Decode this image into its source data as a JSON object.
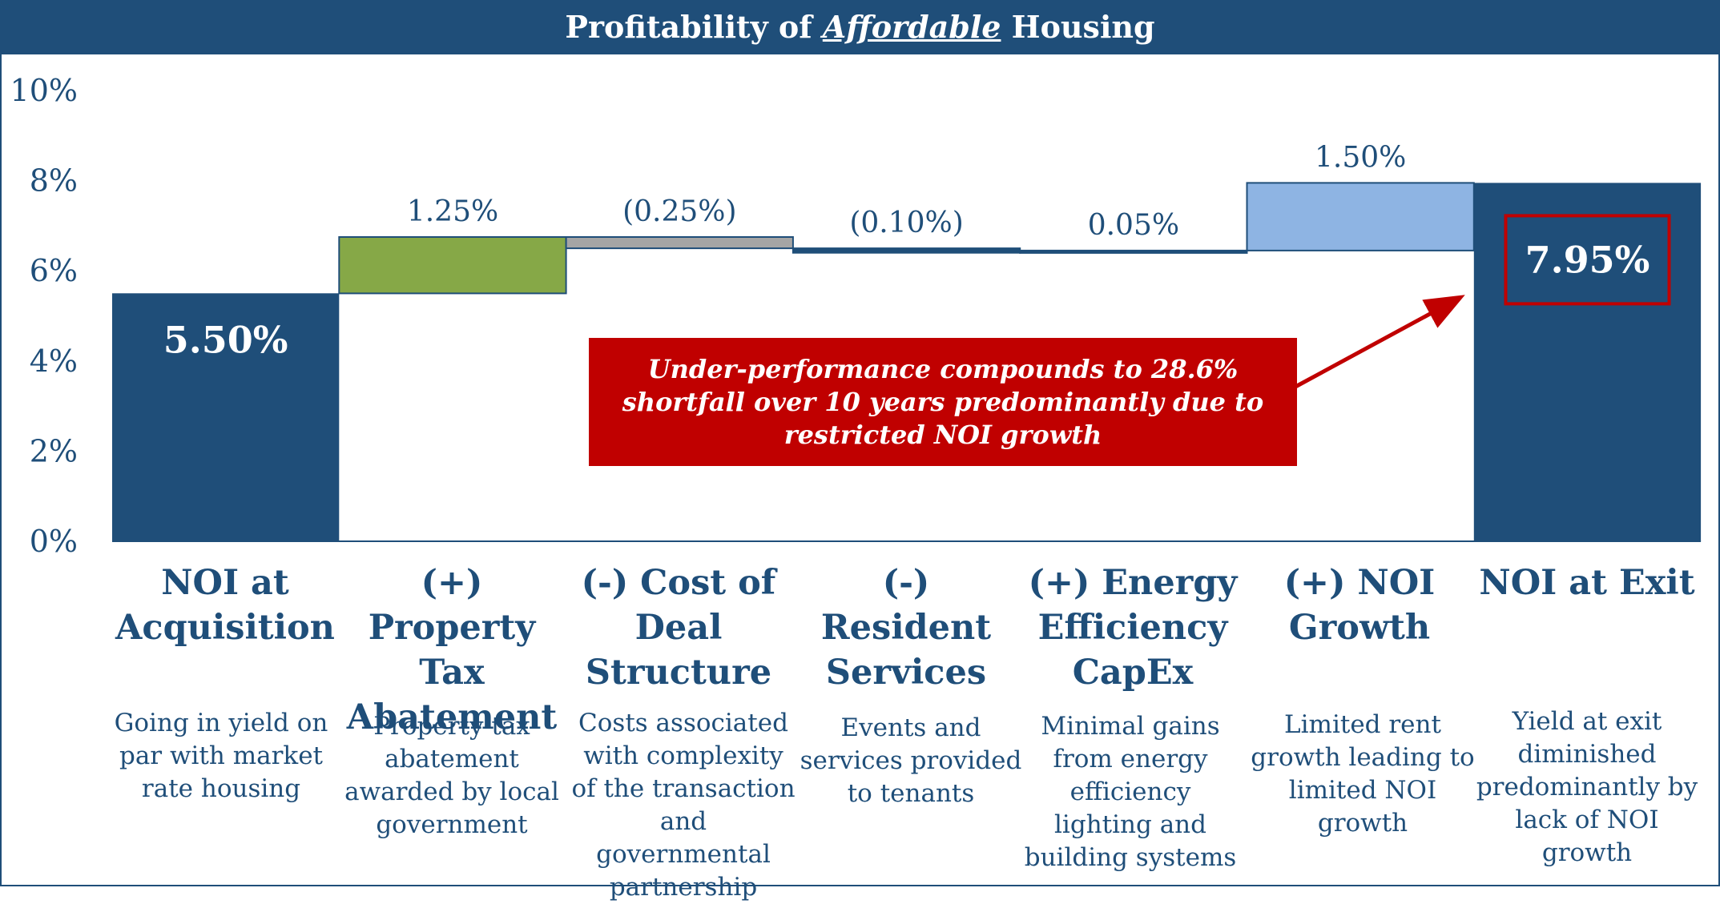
{
  "header": {
    "title_prefix": "Profitability of ",
    "title_emph": "Affordable",
    "title_suffix": " Housing"
  },
  "chart_data": {
    "type": "waterfall",
    "title": "Profitability of Affordable Housing",
    "ylim": [
      0,
      10
    ],
    "yticks": [
      "0%",
      "2%",
      "4%",
      "6%",
      "8%",
      "10%"
    ],
    "categories": [
      "NOI at Acquisition",
      "(+) Property Tax Abatement",
      "(-) Cost of Deal Structure",
      "(-) Resident Services",
      "(+) Energy Efficiency CapEx",
      "(+) NOI Growth",
      "NOI at Exit"
    ],
    "values": [
      5.5,
      1.25,
      -0.25,
      -0.1,
      0.05,
      1.5,
      7.95
    ],
    "labels": [
      "5.50%",
      "1.25%",
      "(0.25%)",
      "(0.10%)",
      "0.05%",
      "1.50%",
      "7.95%"
    ],
    "kinds": [
      "total",
      "delta",
      "delta",
      "delta",
      "delta",
      "delta",
      "total"
    ],
    "colors": [
      "#1f4e79",
      "#86a847",
      "#a5a5a5",
      "#1f4e79",
      "#1f4e79",
      "#8eb4e3",
      "#1f4e79"
    ],
    "descriptions": [
      "Going in yield on par with market rate housing",
      "Property tax abatement awarded by local government",
      "Costs associated with complexity of the transaction and governmental partnership",
      "Events and services provided to tenants",
      "Minimal gains from energy efficiency lighting and building systems",
      "Limited rent growth leading to limited NOI growth",
      "Yield at exit diminished predominantly by lack of NOI growth"
    ],
    "annotation": "Under-performance compounds to 28.6% shortfall over 10 years predominantly due to restricted NOI growth",
    "highlight_color": "#c00000",
    "grid": false
  }
}
